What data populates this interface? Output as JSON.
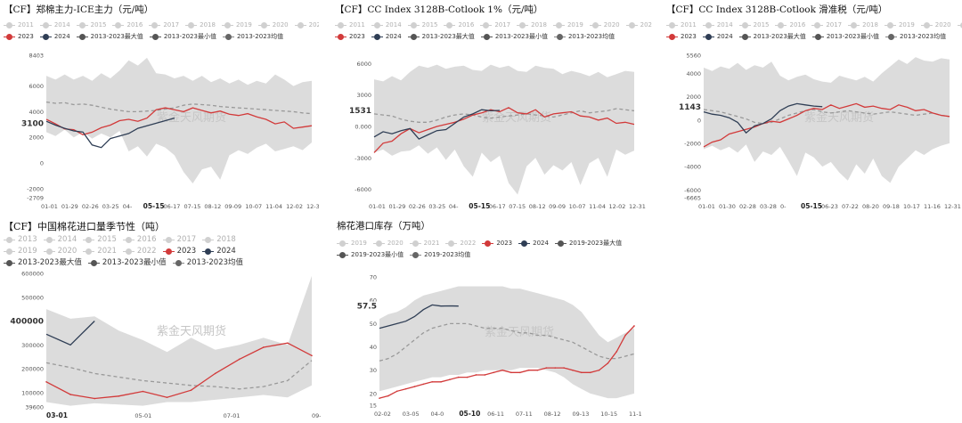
{
  "watermark": "紫金天风期货",
  "chart_data": [
    {
      "type": "line",
      "title": "【CF】郑棉主力-ICE主力（元/吨）",
      "legend_rows": [
        [
          "2011",
          "2014",
          "2015",
          "2016",
          "2017",
          "2018",
          "2019",
          "2020",
          "2021",
          "2022"
        ],
        [
          "2023",
          "2024",
          "2013-2023最大值",
          "2013-2023最小值",
          "2013-2023均值"
        ]
      ],
      "ylim": [
        -2709,
        8403
      ],
      "yticks": [
        "8403",
        "6000",
        "4000",
        "2000",
        "0",
        "-2000",
        "-2709"
      ],
      "ytick_values": [
        8403,
        6000,
        4000,
        2000,
        0,
        -2000,
        -2709
      ],
      "callout_value": "3100",
      "xticks": [
        "01-01",
        "01-29",
        "02-26",
        "03-25",
        "04-",
        "05-15",
        "06-17",
        "07-15",
        "08-12",
        "09-09",
        "10-07",
        "11-04",
        "12-02",
        "12-31"
      ],
      "bold_xtick": "05-15",
      "band_max": [
        6800,
        6500,
        6900,
        6500,
        6800,
        6400,
        7000,
        6600,
        7200,
        8000,
        7600,
        8200,
        7000,
        6900,
        6600,
        6800,
        6400,
        6800,
        6300,
        6600,
        6200,
        6500,
        6100,
        6400,
        6200,
        6900,
        6500,
        6000,
        6300,
        6400
      ],
      "band_min": [
        2400,
        2100,
        2600,
        2000,
        2400,
        1900,
        2300,
        2000,
        2500,
        900,
        1300,
        500,
        1500,
        1200,
        600,
        -700,
        -1600,
        -500,
        -300,
        -1300,
        600,
        1000,
        700,
        1200,
        1500,
        900,
        1100,
        1300,
        1000,
        1600
      ],
      "avg": [
        4750,
        4650,
        4700,
        4550,
        4600,
        4500,
        4350,
        4200,
        4100,
        4000,
        4000,
        4050,
        4100,
        4200,
        4300,
        4500,
        4600,
        4550,
        4500,
        4400,
        4350,
        4300,
        4250,
        4200,
        4150,
        4100,
        4050,
        4000,
        3900,
        3850
      ],
      "s2023": [
        3400,
        3050,
        2650,
        2600,
        2200,
        2400,
        2750,
        2950,
        3300,
        3400,
        3250,
        3500,
        4150,
        4300,
        4150,
        4000,
        4300,
        4100,
        3900,
        4050,
        3800,
        3700,
        3850,
        3600,
        3400,
        3050,
        3200,
        2700,
        2800,
        2900
      ],
      "s2024": [
        3250,
        2950,
        2700,
        2500,
        2400,
        1400,
        1200,
        1900,
        2100,
        2300,
        2700,
        2900,
        3100,
        3300,
        3500
      ]
    },
    {
      "type": "line",
      "title": "【CF】CC Index 3128B-Cotlook 1%（元/吨）",
      "legend_rows": [
        [
          "2011",
          "2014",
          "2015",
          "2016",
          "2017",
          "2018",
          "2019",
          "2020",
          "2021",
          "2022"
        ],
        [
          "2023",
          "2024",
          "2013-2023最大值",
          "2013-2023最小值",
          "2013-2023均值"
        ]
      ],
      "ylim": [
        -6800,
        6800
      ],
      "yticks": [
        "6000",
        "3000",
        "0.000",
        "-3000",
        "-6000"
      ],
      "ytick_values": [
        6000,
        3000,
        0,
        -3000,
        -6000
      ],
      "callout_value": "1531",
      "xticks": [
        "01-01",
        "01-29",
        "02-26",
        "03-25",
        "04-",
        "05-15",
        "06-17",
        "07-15",
        "08-12",
        "09-09",
        "10-07",
        "11-04",
        "12-02",
        "12-31"
      ],
      "bold_xtick": "05-15",
      "band_max": [
        4500,
        4300,
        4800,
        4400,
        5200,
        5800,
        5600,
        5900,
        5500,
        5700,
        5800,
        5400,
        5300,
        5900,
        5600,
        5800,
        5300,
        5200,
        5800,
        5600,
        5500,
        5000,
        5300,
        5100,
        4800,
        5200,
        4700,
        5000,
        5300,
        5200
      ],
      "band_min": [
        -2500,
        -2200,
        -2800,
        -2400,
        -2300,
        -1800,
        -2600,
        -2000,
        -3200,
        -2200,
        -3800,
        -4800,
        -2500,
        -3400,
        -2800,
        -5400,
        -6500,
        -3800,
        -3000,
        -4600,
        -3700,
        -4200,
        -3400,
        -5600,
        -3500,
        -3000,
        -4800,
        -2200,
        -2700,
        -2300
      ],
      "avg": [
        1200,
        1100,
        1000,
        700,
        500,
        400,
        400,
        600,
        900,
        1100,
        1200,
        1100,
        900,
        800,
        900,
        1000,
        1100,
        1200,
        1100,
        1000,
        900,
        1100,
        1300,
        1500,
        1300,
        1400,
        1500,
        1700,
        1600,
        1500
      ],
      "s2023": [
        -2500,
        -1600,
        -1400,
        -700,
        -200,
        -600,
        -300,
        0,
        200,
        400,
        700,
        1100,
        1300,
        1600,
        1400,
        1800,
        1300,
        1200,
        1600,
        900,
        1200,
        1300,
        1400,
        1000,
        900,
        600,
        800,
        300,
        400,
        200
      ],
      "s2024": [
        -1000,
        -500,
        -700,
        -400,
        -200,
        -1200,
        -800,
        -400,
        -300,
        300,
        900,
        1200,
        1600,
        1500,
        1531
      ]
    },
    {
      "type": "line",
      "title": "【CF】CC Index 3128B-Cotlook 滑准税（元/吨）",
      "legend_rows": [
        [
          "2011",
          "2014",
          "2015",
          "2016",
          "2017",
          "2018",
          "2019",
          "2020",
          "2021",
          "2022"
        ],
        [
          "2023",
          "2024",
          "2013-2023最大值",
          "2013-2023最小值",
          "2013-2023均值"
        ]
      ],
      "ylim": [
        -6665,
        5560
      ],
      "yticks": [
        "5560",
        "4000",
        "2000",
        "0",
        "-2000",
        "-4000",
        "-6000",
        "-6665"
      ],
      "ytick_values": [
        5560,
        4000,
        2000,
        0,
        -2000,
        -4000,
        -6000,
        -6665
      ],
      "callout_value": "1143",
      "xticks": [
        "01-01",
        "01-30",
        "02-28",
        "03-28",
        "0-",
        "05-15",
        "06-23",
        "07-22",
        "08-20",
        "09-18",
        "10-17",
        "11-16",
        "12-31"
      ],
      "bold_xtick": "05-15",
      "band_max": [
        4500,
        4200,
        4600,
        4400,
        4900,
        4300,
        4700,
        4500,
        5000,
        3800,
        3400,
        3700,
        3900,
        3500,
        3300,
        3200,
        3800,
        3600,
        3400,
        3700,
        3300,
        4000,
        4600,
        5200,
        4800,
        5400,
        5100,
        5000,
        5300,
        5200
      ],
      "band_min": [
        -2500,
        -2200,
        -2600,
        -2300,
        -2800,
        -2100,
        -3600,
        -2700,
        -3000,
        -2300,
        -3500,
        -4800,
        -2800,
        -3200,
        -4000,
        -3600,
        -4500,
        -5200,
        -3800,
        -4600,
        -3300,
        -4800,
        -5400,
        -4000,
        -3300,
        -2600,
        -3000,
        -2500,
        -2200,
        -2000
      ],
      "avg": [
        900,
        800,
        700,
        500,
        300,
        100,
        -200,
        -300,
        -200,
        100,
        400,
        600,
        800,
        900,
        700,
        600,
        700,
        800,
        700,
        600,
        500,
        600,
        700,
        600,
        500,
        400,
        500,
        600,
        400,
        300
      ],
      "s2023": [
        -2300,
        -1900,
        -1700,
        -1200,
        -1000,
        -800,
        -600,
        -300,
        -100,
        -200,
        100,
        400,
        800,
        1000,
        900,
        1300,
        1000,
        1200,
        1400,
        1100,
        1200,
        1000,
        900,
        1300,
        1100,
        800,
        900,
        600,
        400,
        300
      ],
      "s2024": [
        700,
        500,
        400,
        200,
        -200,
        -1100,
        -500,
        -300,
        100,
        800,
        1200,
        1400,
        1300,
        1200,
        1143
      ]
    },
    {
      "type": "line",
      "title": "【CF】中国棉花进口量季节性（吨）",
      "legend_rows": [
        [
          "2013",
          "2014",
          "2015",
          "2016",
          "2017",
          "2018"
        ],
        [
          "2019",
          "2020",
          "2021",
          "2022",
          "2023",
          "2024"
        ],
        [
          "2013-2023最大值",
          "2013-2023最小值",
          "2013-2023均值"
        ]
      ],
      "ylim": [
        39600,
        600000
      ],
      "yticks": [
        "600000",
        "500000",
        "400000",
        "300000",
        "200000",
        "100000",
        "39600"
      ],
      "ytick_values": [
        600000,
        500000,
        400000,
        300000,
        200000,
        100000,
        39600
      ],
      "callout_value": "400000",
      "xticks": [
        "03-01",
        "05-01",
        "07-01",
        "09-01"
      ],
      "bold_xtick": "03-01",
      "x": [
        1,
        2,
        3,
        4,
        5,
        6,
        7,
        8,
        9,
        10,
        11,
        12
      ],
      "band_max": [
        450000,
        410000,
        420000,
        360000,
        320000,
        270000,
        330000,
        280000,
        300000,
        330000,
        300000,
        590000
      ],
      "band_min": [
        60000,
        45000,
        55000,
        50000,
        45000,
        60000,
        60000,
        70000,
        80000,
        90000,
        80000,
        130000
      ],
      "avg": [
        225000,
        205000,
        180000,
        165000,
        150000,
        140000,
        130000,
        125000,
        115000,
        125000,
        150000,
        235000
      ],
      "s2023": [
        145000,
        92000,
        75000,
        85000,
        105000,
        80000,
        110000,
        180000,
        240000,
        290000,
        308000,
        255000
      ],
      "s2024": [
        345000,
        300000,
        400000
      ]
    },
    {
      "type": "line",
      "title": "棉花港口库存（万吨）",
      "legend_rows": [
        [
          "2019",
          "2020",
          "2021",
          "2022",
          "2023",
          "2024",
          "2019-2023最大值"
        ],
        [
          "2019-2023最小值",
          "2019-2023均值"
        ]
      ],
      "ylim": [
        15,
        70
      ],
      "yticks": [
        "70",
        "60",
        "50",
        "40",
        "30",
        "20",
        "15"
      ],
      "ytick_values": [
        70,
        60,
        50,
        40,
        30,
        20,
        15
      ],
      "callout_value": "57.5",
      "xticks": [
        "02-02",
        "03-05",
        "04-0",
        "05-10",
        "06-11",
        "07-11",
        "08-12",
        "09-13",
        "10-15",
        "11-16"
      ],
      "bold_xtick": "05-10",
      "band_max": [
        52,
        54,
        55,
        57,
        60,
        62,
        63,
        64,
        65,
        66,
        66,
        66,
        66,
        66,
        66,
        65,
        65,
        64,
        63,
        62,
        61,
        60,
        58,
        55,
        50,
        45,
        42,
        44,
        46,
        48
      ],
      "band_min": [
        21,
        22,
        23,
        24,
        25,
        26,
        27,
        27,
        28,
        28,
        29,
        29,
        30,
        30,
        30,
        30,
        31,
        31,
        31,
        30,
        29,
        27,
        24,
        22,
        20,
        19,
        18,
        18,
        19,
        20
      ],
      "avg": [
        34,
        35,
        37,
        40,
        43,
        46,
        48,
        49,
        50,
        50,
        50,
        49,
        48,
        48,
        48,
        47,
        46,
        46,
        45,
        45,
        44,
        43,
        42,
        40,
        38,
        36,
        35,
        35,
        36,
        37
      ],
      "s2023": [
        18,
        19,
        21,
        22,
        23,
        24,
        25,
        25,
        26,
        27,
        27,
        28,
        28,
        29,
        30,
        29,
        29,
        30,
        30,
        31,
        31,
        31,
        30,
        29,
        29,
        30,
        33,
        38,
        45,
        49
      ],
      "s2024": [
        48,
        49,
        50,
        51,
        53,
        56,
        58,
        57.5,
        57.6,
        57.5
      ]
    }
  ]
}
